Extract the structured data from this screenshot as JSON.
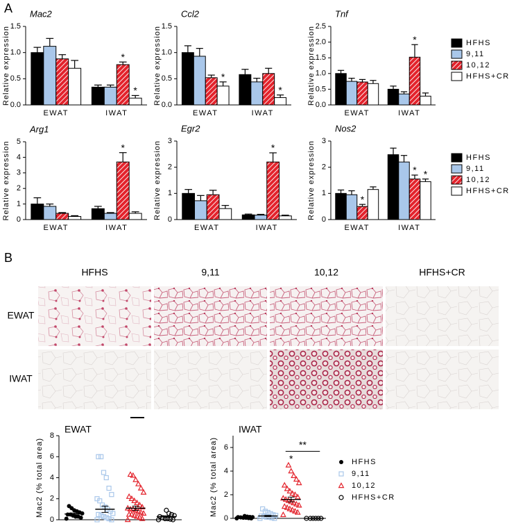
{
  "panels": [
    "A",
    "B"
  ],
  "micrographs": {
    "columns": [
      "HFHS",
      "9,11",
      "10,12",
      "HFHS+CR"
    ],
    "rows": [
      "EWAT",
      "IWAT"
    ]
  },
  "chart_data": [
    {
      "type": "bar",
      "title": "Mac2",
      "ylabel": "Relative expression",
      "categories": [
        "EWAT",
        "IWAT"
      ],
      "ylim": [
        0,
        1.5
      ],
      "yticks": [
        {
          "value": 0,
          "label": "0.0"
        },
        0.5,
        {
          "value": 1,
          "label": "1.0"
        },
        1.5
      ],
      "series": [
        {
          "name": "HFHS",
          "color": "#000000",
          "values": [
            1.0,
            0.34
          ],
          "errors": [
            0.1,
            0.04
          ],
          "significance": [
            null,
            null
          ]
        },
        {
          "name": "9,11",
          "color": "#a9c7ea",
          "values": [
            1.12,
            0.34
          ],
          "errors": [
            0.15,
            0.04
          ],
          "significance": [
            null,
            null
          ]
        },
        {
          "name": "10,12",
          "color": "#e3232c",
          "hatch": true,
          "values": [
            0.88,
            0.77
          ],
          "errors": [
            0.08,
            0.05
          ],
          "significance": [
            null,
            "*"
          ]
        },
        {
          "name": "HFHS+CR",
          "color": "#ffffff",
          "values": [
            0.7,
            0.13
          ],
          "errors": [
            0.15,
            0.05
          ],
          "significance": [
            null,
            "*"
          ]
        }
      ]
    },
    {
      "type": "bar",
      "title": "Ccl2",
      "ylabel": "Relative expression",
      "categories": [
        "EWAT",
        "IWAT"
      ],
      "ylim": [
        0,
        1.5
      ],
      "yticks": [
        {
          "value": 0,
          "label": "0.0"
        },
        0.5,
        {
          "value": 1,
          "label": "1.0"
        },
        1.5
      ],
      "series": [
        {
          "name": "HFHS",
          "color": "#000000",
          "values": [
            1.0,
            0.58
          ],
          "errors": [
            0.13,
            0.1
          ],
          "significance": [
            null,
            null
          ]
        },
        {
          "name": "9,11",
          "color": "#a9c7ea",
          "values": [
            0.93,
            0.44
          ],
          "errors": [
            0.15,
            0.07
          ],
          "significance": [
            null,
            null
          ]
        },
        {
          "name": "10,12",
          "color": "#e3232c",
          "hatch": true,
          "values": [
            0.52,
            0.6
          ],
          "errors": [
            0.05,
            0.1
          ],
          "significance": [
            null,
            null
          ]
        },
        {
          "name": "HFHS+CR",
          "color": "#ffffff",
          "values": [
            0.36,
            0.14
          ],
          "errors": [
            0.08,
            0.05
          ],
          "significance": [
            "*",
            "*"
          ]
        }
      ]
    },
    {
      "type": "bar",
      "title": "Tnf",
      "ylabel": "Relative expression",
      "categories": [
        "EWAT",
        "IWAT"
      ],
      "legend": "right",
      "ylim": [
        0,
        2.5
      ],
      "yticks": [
        {
          "value": 0,
          "label": "0.0"
        },
        0.5,
        {
          "value": 1,
          "label": "1.0"
        },
        1.5,
        {
          "value": 2,
          "label": "2.0"
        },
        2.5
      ],
      "series": [
        {
          "name": "HFHS",
          "color": "#000000",
          "values": [
            1.0,
            0.5
          ],
          "errors": [
            0.1,
            0.1
          ],
          "significance": [
            null,
            null
          ]
        },
        {
          "name": "9,11",
          "color": "#a9c7ea",
          "values": [
            0.75,
            0.35
          ],
          "errors": [
            0.1,
            0.07
          ],
          "significance": [
            null,
            null
          ]
        },
        {
          "name": "10,12",
          "color": "#e3232c",
          "hatch": true,
          "values": [
            0.73,
            1.52
          ],
          "errors": [
            0.08,
            0.4
          ],
          "significance": [
            null,
            "*"
          ]
        },
        {
          "name": "HFHS+CR",
          "color": "#ffffff",
          "values": [
            0.68,
            0.28
          ],
          "errors": [
            0.1,
            0.1
          ],
          "significance": [
            null,
            null
          ]
        }
      ]
    },
    {
      "type": "bar",
      "title": "Arg1",
      "ylabel": "Relative expression",
      "categories": [
        "EWAT",
        "IWAT"
      ],
      "ylim": [
        0,
        5
      ],
      "yticks": [
        0,
        1,
        2,
        3,
        4,
        5
      ],
      "series": [
        {
          "name": "HFHS",
          "color": "#000000",
          "values": [
            1.0,
            0.7
          ],
          "errors": [
            0.4,
            0.15
          ],
          "significance": [
            null,
            null
          ]
        },
        {
          "name": "9,11",
          "color": "#a9c7ea",
          "values": [
            0.85,
            0.4
          ],
          "errors": [
            0.15,
            0.05
          ],
          "significance": [
            null,
            null
          ]
        },
        {
          "name": "10,12",
          "color": "#e3232c",
          "hatch": true,
          "values": [
            0.4,
            3.7
          ],
          "errors": [
            0.05,
            0.6
          ],
          "significance": [
            null,
            "*"
          ]
        },
        {
          "name": "HFHS+CR",
          "color": "#ffffff",
          "values": [
            0.2,
            0.4
          ],
          "errors": [
            0.05,
            0.1
          ],
          "significance": [
            null,
            null
          ]
        }
      ]
    },
    {
      "type": "bar",
      "title": "Egr2",
      "ylabel": "Relative expression",
      "categories": [
        "EWAT",
        "IWAT"
      ],
      "ylim": [
        0,
        3
      ],
      "yticks": [
        0,
        1,
        2,
        3
      ],
      "series": [
        {
          "name": "HFHS",
          "color": "#000000",
          "values": [
            1.0,
            0.18
          ],
          "errors": [
            0.15,
            0.03
          ],
          "significance": [
            null,
            null
          ]
        },
        {
          "name": "9,11",
          "color": "#a9c7ea",
          "values": [
            0.72,
            0.17
          ],
          "errors": [
            0.2,
            0.03
          ],
          "significance": [
            null,
            null
          ]
        },
        {
          "name": "10,12",
          "color": "#e3232c",
          "hatch": true,
          "values": [
            0.95,
            2.2
          ],
          "errors": [
            0.17,
            0.35
          ],
          "significance": [
            null,
            "*"
          ]
        },
        {
          "name": "HFHS+CR",
          "color": "#ffffff",
          "values": [
            0.42,
            0.14
          ],
          "errors": [
            0.12,
            0.03
          ],
          "significance": [
            null,
            null
          ]
        }
      ]
    },
    {
      "type": "bar",
      "title": "Nos2",
      "ylabel": "Relative expression",
      "categories": [
        "EWAT",
        "IWAT"
      ],
      "legend": "right",
      "ylim": [
        0,
        3
      ],
      "yticks": [
        0,
        1,
        2,
        3
      ],
      "series": [
        {
          "name": "HFHS",
          "color": "#000000",
          "values": [
            1.0,
            2.48
          ],
          "errors": [
            0.13,
            0.25
          ],
          "significance": [
            null,
            null
          ]
        },
        {
          "name": "9,11",
          "color": "#a9c7ea",
          "values": [
            0.95,
            2.2
          ],
          "errors": [
            0.15,
            0.25
          ],
          "significance": [
            null,
            null
          ]
        },
        {
          "name": "10,12",
          "color": "#e3232c",
          "hatch": true,
          "values": [
            0.5,
            1.55
          ],
          "errors": [
            0.08,
            0.15
          ],
          "significance": [
            "*",
            "*"
          ]
        },
        {
          "name": "HFHS+CR",
          "color": "#ffffff",
          "values": [
            1.15,
            1.45
          ],
          "errors": [
            0.1,
            0.1
          ],
          "significance": [
            null,
            "*"
          ]
        }
      ]
    },
    {
      "type": "dot",
      "title": "EWAT",
      "ylabel": "Mac2 (% total area)",
      "ylim": [
        0,
        8
      ],
      "yticks": [
        0,
        2,
        4,
        6,
        8
      ],
      "series": [
        {
          "name": "HFHS",
          "color": "#000000",
          "marker": "circle",
          "mean": 0.55,
          "sem": 0.1,
          "values": [
            0.1,
            0.2,
            0.3,
            0.3,
            0.4,
            0.5,
            0.5,
            0.6,
            0.7,
            0.8,
            0.9,
            1.1,
            1.3
          ]
        },
        {
          "name": "9,11",
          "color": "#a9c7ea",
          "marker": "square-open",
          "mean": 1.0,
          "sem": 0.3,
          "values": [
            0,
            0,
            0.1,
            0.2,
            0.3,
            0.4,
            0.5,
            0.6,
            0.8,
            1,
            1.2,
            1.4,
            1.8,
            2,
            2.4,
            3,
            4,
            4.5,
            6,
            6
          ]
        },
        {
          "name": "10,12",
          "color": "#e3232c",
          "marker": "triangle-open",
          "mean": 1.1,
          "sem": 0.2,
          "values": [
            0,
            0.1,
            0.2,
            0.3,
            0.4,
            0.5,
            0.5,
            0.6,
            0.7,
            0.8,
            0.9,
            1,
            1,
            1.1,
            1.2,
            1.4,
            1.6,
            1.8,
            2,
            2.2,
            2.6,
            3,
            3.4,
            3.8,
            4.2,
            4.3
          ]
        },
        {
          "name": "HFHS+CR",
          "color": "#000000",
          "marker": "circle-open",
          "mean": 0.3,
          "sem": 0.08,
          "values": [
            0,
            0,
            0.05,
            0.1,
            0.1,
            0.2,
            0.3,
            0.4,
            0.5,
            0.6,
            0.9
          ]
        }
      ]
    },
    {
      "type": "dot",
      "title": "IWAT",
      "ylabel": "Mac2 (% total area)",
      "ylim": [
        0,
        7
      ],
      "yticks": [
        0,
        2,
        4,
        6
      ],
      "legend": "right",
      "significance": [
        {
          "label": "*",
          "series": [
            2
          ]
        },
        {
          "label": "**",
          "series": [
            2,
            3
          ]
        }
      ],
      "series": [
        {
          "name": "HFHS",
          "color": "#000000",
          "marker": "circle",
          "mean": 0.08,
          "sem": 0.02,
          "values": [
            0,
            0,
            0.02,
            0.05,
            0.05,
            0.08,
            0.1,
            0.1,
            0.12,
            0.15,
            0.2
          ]
        },
        {
          "name": "9,11",
          "color": "#a9c7ea",
          "marker": "square-open",
          "mean": 0.2,
          "sem": 0.05,
          "values": [
            0,
            0,
            0.05,
            0.1,
            0.1,
            0.15,
            0.2,
            0.25,
            0.3,
            0.4,
            0.5,
            0.6,
            0.8
          ]
        },
        {
          "name": "10,12",
          "color": "#e3232c",
          "marker": "triangle-open",
          "mean": 1.6,
          "sem": 0.2,
          "values": [
            0.3,
            0.5,
            0.6,
            0.7,
            0.8,
            0.9,
            1,
            1.1,
            1.2,
            1.3,
            1.4,
            1.5,
            1.6,
            1.7,
            1.8,
            2,
            2.1,
            2.3,
            2.5,
            2.8,
            3,
            3.3,
            3.6,
            4,
            4.5
          ]
        },
        {
          "name": "HFHS+CR",
          "color": "#000000",
          "marker": "circle-open",
          "mean": 0,
          "sem": 0,
          "values": [
            0,
            0,
            0,
            0,
            0,
            0
          ]
        }
      ]
    }
  ]
}
